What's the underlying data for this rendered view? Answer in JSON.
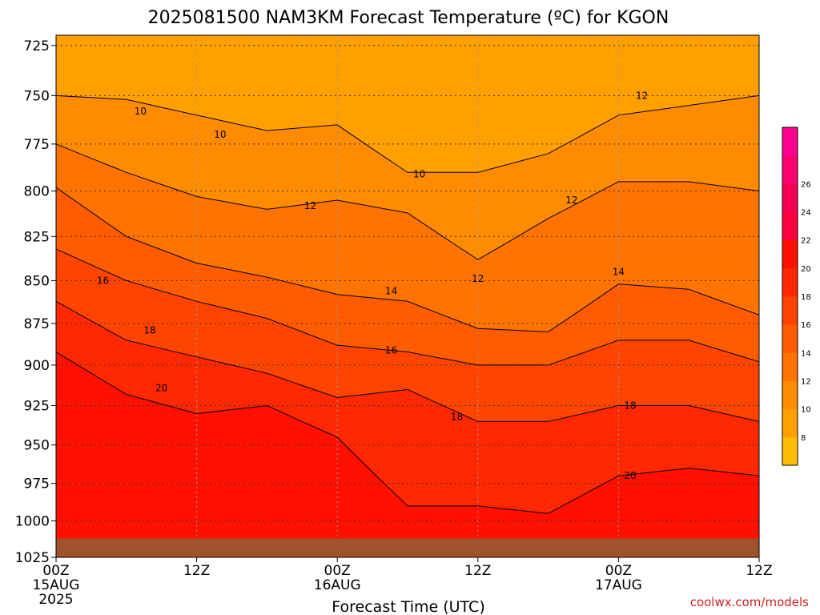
{
  "chart_data": {
    "type": "heatmap",
    "title": "2025081500 NAM3KM Forecast Temperature (ºC) for KGON",
    "xlabel": "Forecast Time (UTC)",
    "ylabel": "",
    "y_ticks": [
      "725",
      "750",
      "775",
      "800",
      "825",
      "850",
      "875",
      "900",
      "925",
      "950",
      "975",
      "1000",
      "1025"
    ],
    "y_values": [
      725,
      750,
      775,
      800,
      825,
      850,
      875,
      900,
      925,
      950,
      975,
      1000,
      1025
    ],
    "ylim": [
      720,
      1025
    ],
    "y_scale": "pressure (log)",
    "y_inverted": true,
    "x_ticks": [
      {
        "label": "00Z",
        "sub1": "15AUG",
        "sub2": "2025"
      },
      {
        "label": "12Z",
        "sub1": "",
        "sub2": ""
      },
      {
        "label": "00Z",
        "sub1": "16AUG",
        "sub2": ""
      },
      {
        "label": "12Z",
        "sub1": "",
        "sub2": ""
      },
      {
        "label": "00Z",
        "sub1": "17AUG",
        "sub2": ""
      },
      {
        "label": "12Z",
        "sub1": "",
        "sub2": ""
      }
    ],
    "x_hours": [
      0,
      12,
      24,
      36,
      48,
      60
    ],
    "xlim": [
      0,
      60
    ],
    "grid": true,
    "colorbar": {
      "levels": [
        6,
        8,
        10,
        12,
        14,
        16,
        18,
        20,
        22,
        24,
        26,
        28
      ],
      "labels": [
        "8",
        "10",
        "12",
        "14",
        "16",
        "18",
        "20",
        "22",
        "24",
        "26"
      ],
      "colors": [
        "#ffbf00",
        "#ffa000",
        "#ff8c00",
        "#ff7400",
        "#ff5c00",
        "#ff4400",
        "#ff2800",
        "#ff1000",
        "#ff0040",
        "#f50050",
        "#ff006e",
        "#ff0090"
      ],
      "placement": "right"
    },
    "contour_levels": [
      {
        "value": 10,
        "hours": [
          0,
          6,
          12,
          18,
          24,
          30,
          36,
          42,
          48,
          54,
          60
        ],
        "pressures": [
          750,
          752,
          760,
          768,
          765,
          790,
          790,
          780,
          760,
          755,
          750
        ]
      },
      {
        "value": 12,
        "hours": [
          0,
          6,
          12,
          18,
          24,
          30,
          36,
          42,
          48,
          54,
          60
        ],
        "pressures": [
          775,
          790,
          803,
          810,
          805,
          812,
          838,
          815,
          795,
          795,
          800
        ]
      },
      {
        "value": 14,
        "hours": [
          0,
          6,
          12,
          18,
          24,
          30,
          36,
          42,
          48,
          54,
          60
        ],
        "pressures": [
          798,
          825,
          840,
          848,
          858,
          862,
          878,
          880,
          852,
          855,
          870
        ]
      },
      {
        "value": 16,
        "hours": [
          0,
          6,
          12,
          18,
          24,
          30,
          36,
          42,
          48,
          54,
          60
        ],
        "pressures": [
          832,
          850,
          862,
          872,
          888,
          892,
          900,
          900,
          885,
          885,
          898
        ]
      },
      {
        "value": 18,
        "hours": [
          0,
          6,
          12,
          18,
          24,
          30,
          36,
          42,
          48,
          54,
          60
        ],
        "pressures": [
          862,
          885,
          895,
          905,
          920,
          915,
          935,
          935,
          925,
          925,
          935
        ]
      },
      {
        "value": 20,
        "hours": [
          0,
          6,
          12,
          18,
          24,
          30,
          36,
          42,
          48,
          54,
          60
        ],
        "pressures": [
          892,
          918,
          930,
          925,
          945,
          990,
          990,
          995,
          970,
          965,
          970
        ]
      }
    ],
    "contour_labels": [
      {
        "text": "10",
        "hour": 7.2,
        "pressure": 758
      },
      {
        "text": "10",
        "hour": 14.0,
        "pressure": 770
      },
      {
        "text": "10",
        "hour": 31.0,
        "pressure": 791
      },
      {
        "text": "12",
        "hour": 21.7,
        "pressure": 808
      },
      {
        "text": "12",
        "hour": 44.0,
        "pressure": 805
      },
      {
        "text": "12",
        "hour": 36.0,
        "pressure": 849
      },
      {
        "text": "12",
        "hour": 50.0,
        "pressure": 750
      },
      {
        "text": "14",
        "hour": 28.6,
        "pressure": 856
      },
      {
        "text": "14",
        "hour": 48.0,
        "pressure": 845
      },
      {
        "text": "16",
        "hour": 4.0,
        "pressure": 850
      },
      {
        "text": "16",
        "hour": 28.6,
        "pressure": 891
      },
      {
        "text": "18",
        "hour": 8.0,
        "pressure": 879
      },
      {
        "text": "18",
        "hour": 34.2,
        "pressure": 932
      },
      {
        "text": "18",
        "hour": 49.0,
        "pressure": 925
      },
      {
        "text": "20",
        "hour": 9.0,
        "pressure": 914
      },
      {
        "text": "20",
        "hour": 49.0,
        "pressure": 970
      }
    ],
    "ground_pressure": 1012,
    "ground_color": "#a0522d",
    "credit": "coolwx.com/models"
  }
}
